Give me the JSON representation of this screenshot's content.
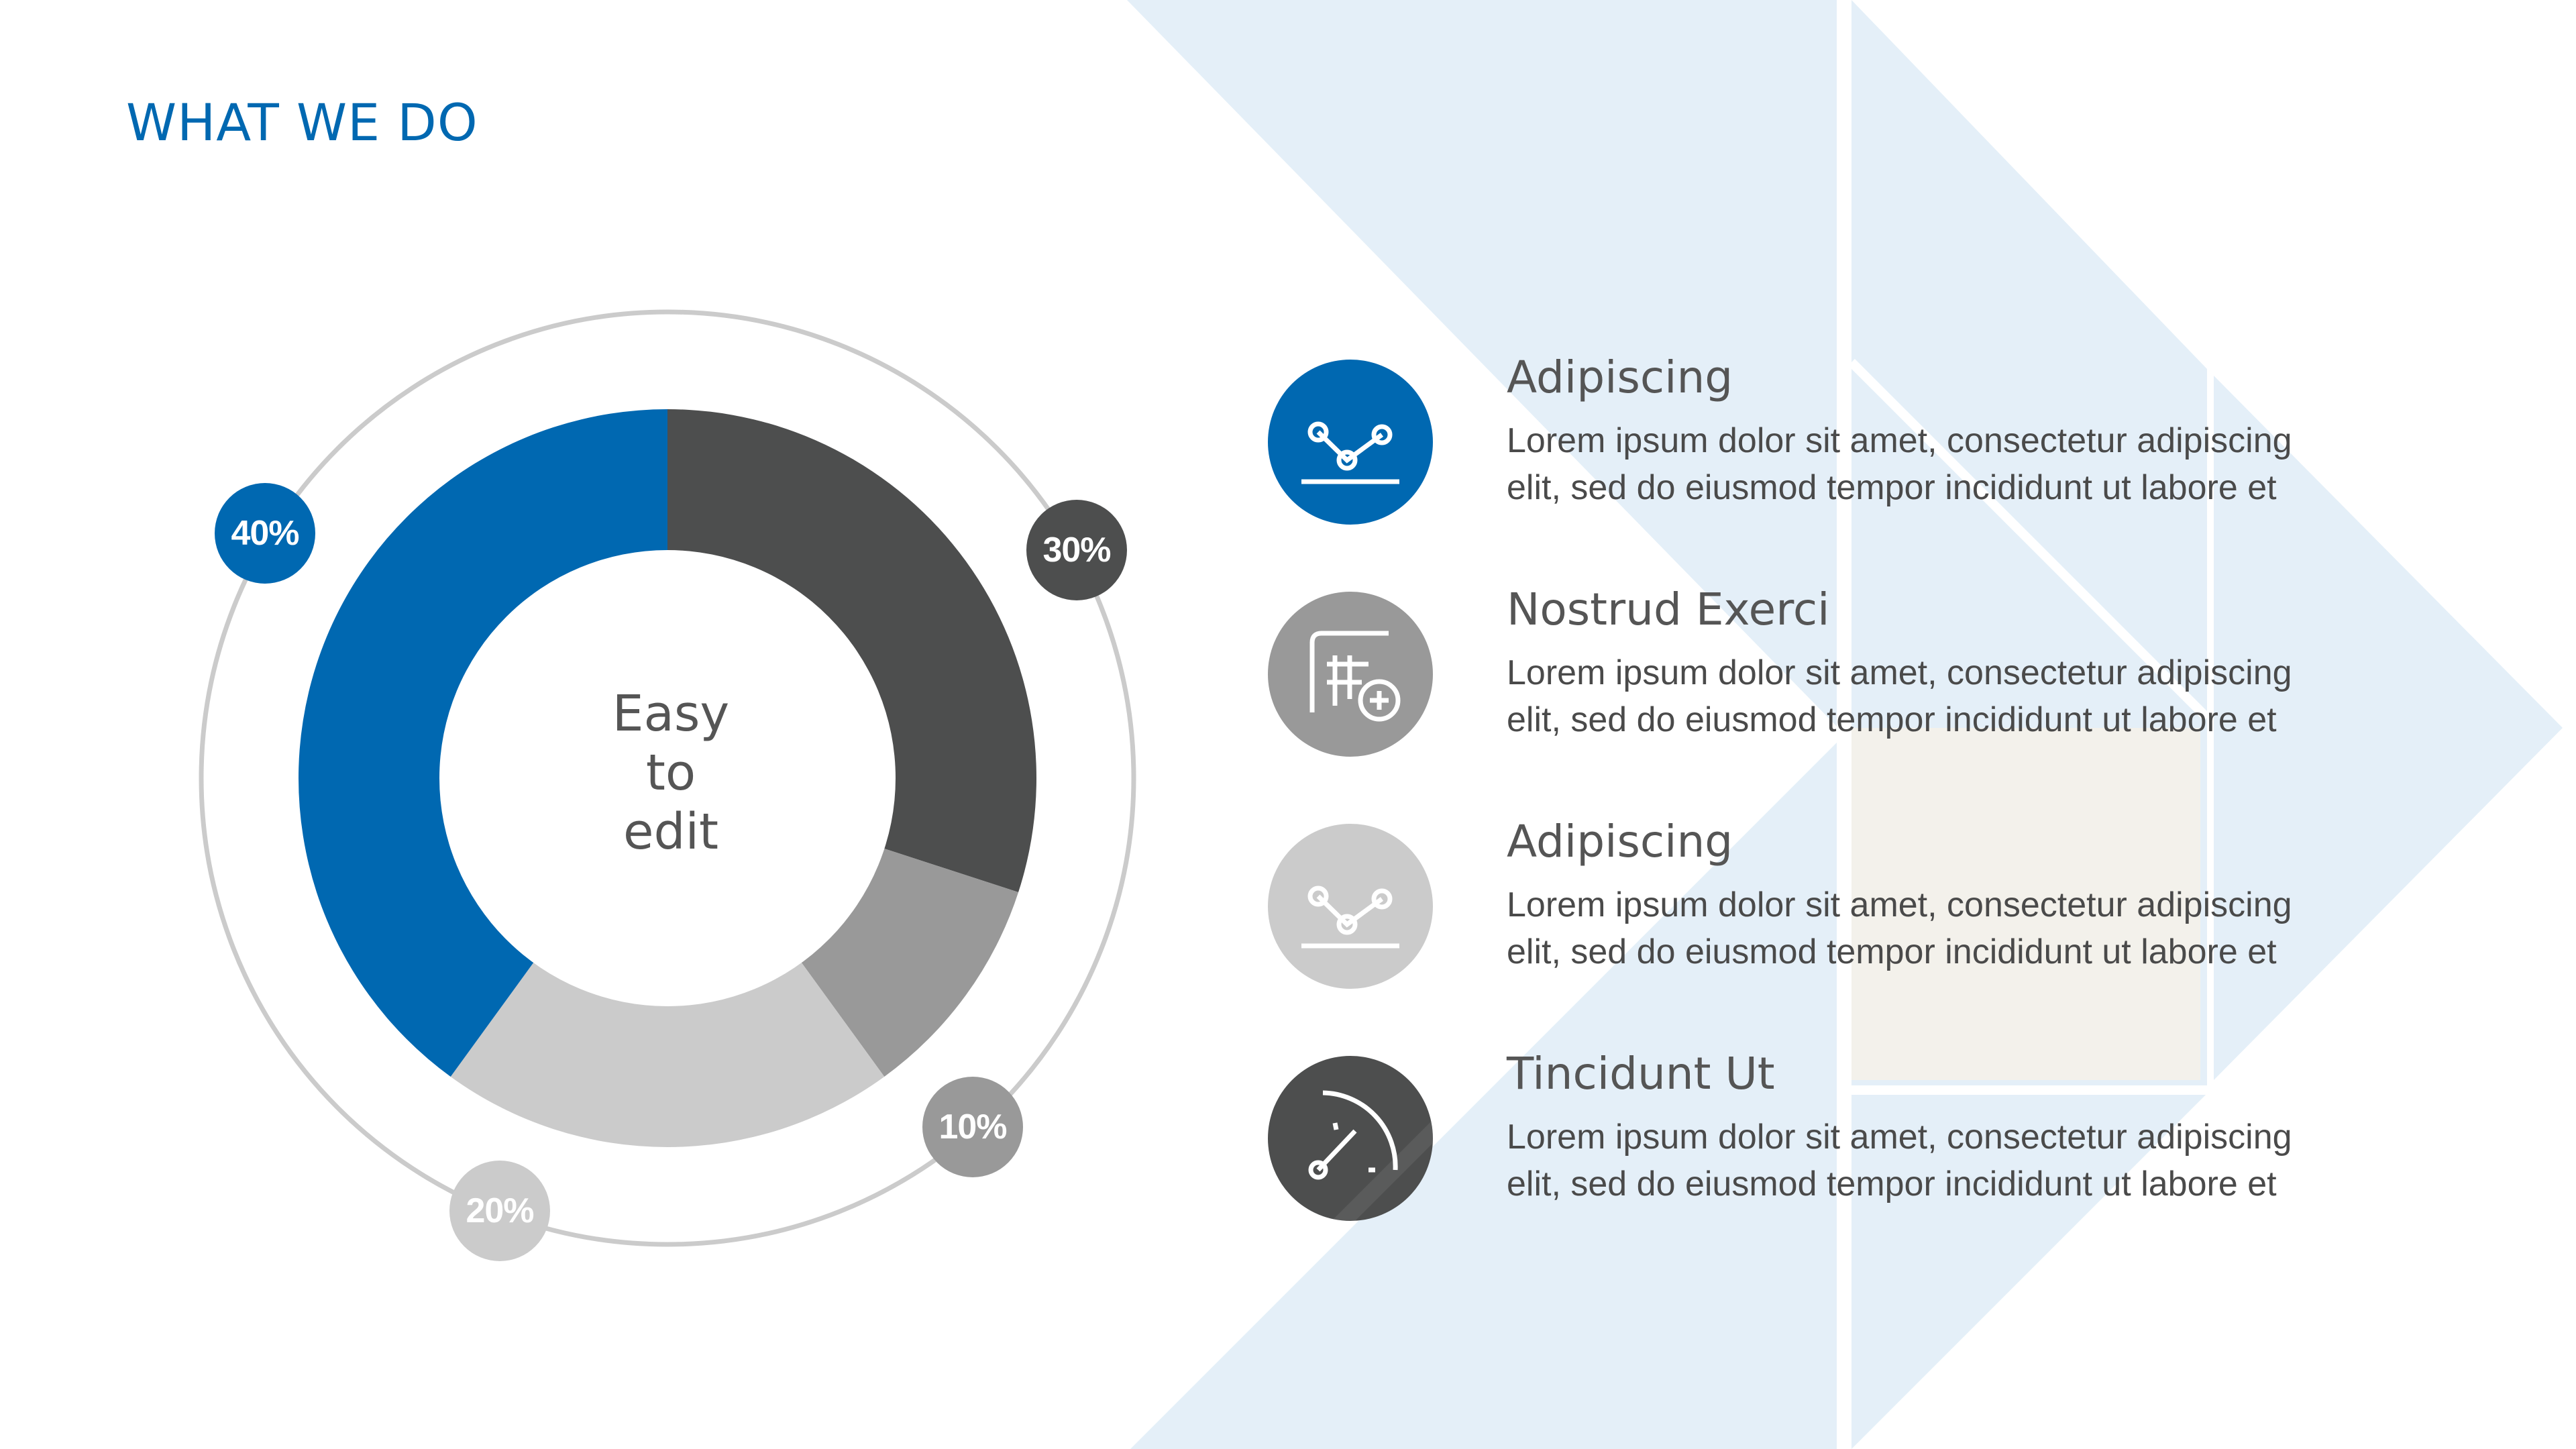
{
  "title": "WHAT WE DO",
  "colors": {
    "accent": "#0068b1",
    "dark": "#4d4e4e",
    "mid": "#999999",
    "light": "#cbcbcb",
    "background_arrow": "#e4eff8",
    "background_box": "#f3f1eb"
  },
  "chart_data": {
    "type": "pie",
    "center_label": [
      "Easy",
      "to",
      "edit"
    ],
    "series": [
      {
        "value": 30,
        "label": "30%",
        "color": "#4d4e4e"
      },
      {
        "value": 10,
        "label": "10%",
        "color": "#999999"
      },
      {
        "value": 20,
        "label": "20%",
        "color": "#cbcbcb"
      },
      {
        "value": 40,
        "label": "40%",
        "color": "#0068b1"
      }
    ]
  },
  "items": [
    {
      "title": "Adipiscing",
      "line1": "Lorem ipsum dolor sit amet, consectetur adipiscing",
      "line2": "elit, sed do eiusmod tempor incididunt ut labore et",
      "icon": "line-chart-icon",
      "color": "#0068b1"
    },
    {
      "title": "Nostrud Exerci",
      "line1": "Lorem ipsum dolor sit amet, consectetur adipiscing",
      "line2": "elit, sed do eiusmod tempor incididunt ut labore et",
      "icon": "add-table-icon",
      "color": "#999999"
    },
    {
      "title": "Adipiscing",
      "line1": "Lorem ipsum dolor sit amet, consectetur adipiscing",
      "line2": "elit, sed do eiusmod tempor incididunt ut labore et",
      "icon": "line-chart-icon",
      "color": "#cbcbcb"
    },
    {
      "title": "Tincidunt Ut",
      "line1": "Lorem ipsum dolor sit amet, consectetur adipiscing",
      "line2": "elit, sed do eiusmod tempor incididunt ut labore et",
      "icon": "gauge-icon",
      "color": "#4d4e4e"
    }
  ]
}
